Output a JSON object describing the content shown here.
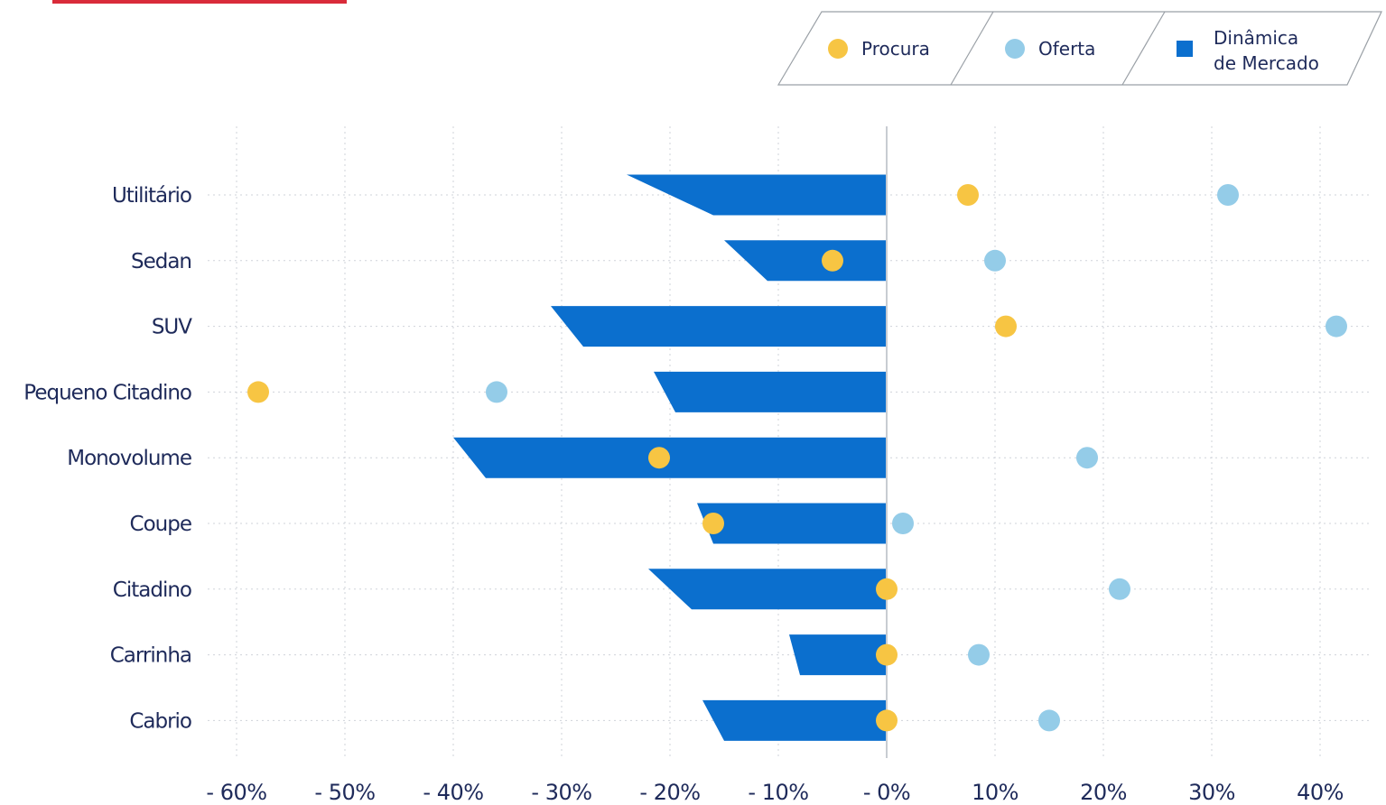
{
  "colors": {
    "procura": "#f7c543",
    "oferta": "#94cce8",
    "dinamica": "#0b6fce",
    "text": "#1e2a5a",
    "grid": "#cfd3da",
    "zero_line": "#c8ccd2",
    "accent": "#d92b3a",
    "legend_border": "#9aa0a6"
  },
  "legend": {
    "items": [
      {
        "key": "procura",
        "label": "Procura",
        "shape": "circle"
      },
      {
        "key": "oferta",
        "label": "Oferta",
        "shape": "circle"
      },
      {
        "key": "dinamica",
        "label_lines": [
          "Dinâmica",
          "de Mercado"
        ],
        "shape": "square"
      }
    ]
  },
  "chart_data": {
    "type": "bar",
    "title": "",
    "xlabel": "",
    "ylabel": "",
    "orientation": "horizontal",
    "xlim": [
      -60,
      40
    ],
    "grid": true,
    "legend_position": "top-right",
    "x_ticks": [
      -60,
      -50,
      -40,
      -30,
      -20,
      -10,
      0,
      10,
      20,
      30,
      40
    ],
    "x_tick_labels": [
      "- 60%",
      "- 50%",
      "- 40%",
      "- 30%",
      "- 20%",
      "- 10%",
      "- 0%",
      "10%",
      "20%",
      "30%",
      "40%"
    ],
    "categories": [
      "Utilitário",
      "Sedan",
      "SUV",
      "Pequeno Citadino",
      "Monovolume",
      "Coupe",
      "Citadino",
      "Carrinha",
      "Cabrio"
    ],
    "series": [
      {
        "name": "Dinâmica de Mercado",
        "key": "dinamica",
        "kind": "bar",
        "values_top": [
          -24,
          -15,
          -31,
          -21.5,
          -40,
          -17.5,
          -22,
          -9,
          -17
        ],
        "values_bottom": [
          -16,
          -11,
          -28,
          -19.5,
          -37,
          -16,
          -18,
          -8,
          -15
        ]
      },
      {
        "name": "Procura",
        "key": "procura",
        "kind": "point",
        "values": [
          7.5,
          -5,
          11,
          -58,
          -21,
          -16,
          0,
          0,
          0
        ]
      },
      {
        "name": "Oferta",
        "key": "oferta",
        "kind": "point",
        "values": [
          31.5,
          10,
          41.5,
          -36,
          18.5,
          1.5,
          21.5,
          8.5,
          15
        ]
      }
    ]
  }
}
